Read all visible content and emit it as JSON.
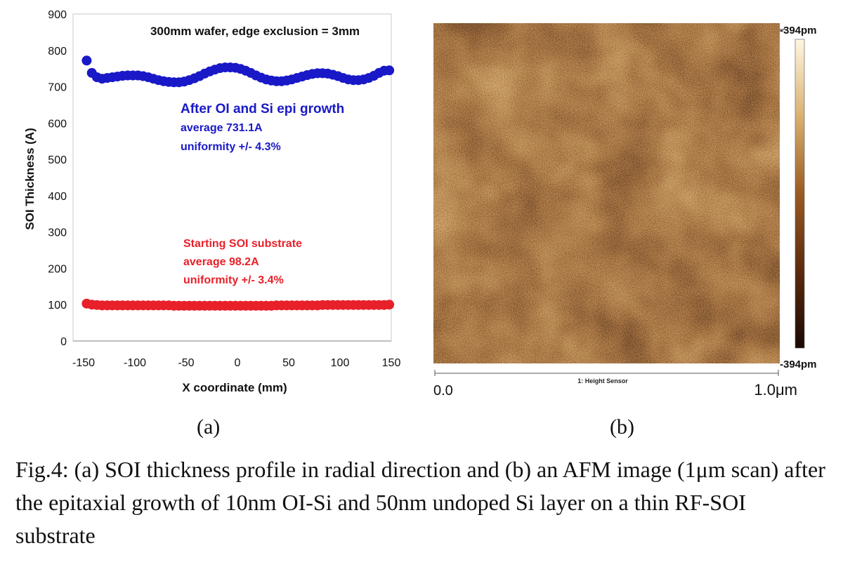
{
  "figure": {
    "panel_a_label": "(a)",
    "panel_b_label": "(b)",
    "caption": "Fig.4: (a) SOI thickness profile in radial direction and (b) an AFM image (1μm scan) after the epitaxial growth of 10nm OI-Si and 50nm undoped Si layer on a thin RF-SOI substrate"
  },
  "chart_data": {
    "type": "scatter",
    "title": "300mm wafer, edge exclusion = 3mm",
    "xlabel": "X coordinate (mm)",
    "ylabel": "SOI Thickness (A)",
    "xlim": [
      -150,
      150
    ],
    "ylim": [
      0,
      900
    ],
    "xticks": [
      -150,
      -100,
      -50,
      0,
      50,
      100,
      150
    ],
    "yticks": [
      0,
      100,
      200,
      300,
      400,
      500,
      600,
      700,
      800,
      900
    ],
    "grid": "none",
    "series": [
      {
        "color": "#1919c8",
        "x": [
          -147,
          -142,
          -137,
          -132,
          -127,
          -122,
          -117,
          -112,
          -107,
          -102,
          -97,
          -92,
          -87,
          -82,
          -77,
          -72,
          -67,
          -62,
          -57,
          -52,
          -47,
          -42,
          -37,
          -32,
          -27,
          -22,
          -17,
          -12,
          -7,
          -2,
          3,
          8,
          13,
          18,
          23,
          28,
          33,
          38,
          43,
          48,
          53,
          58,
          63,
          68,
          73,
          78,
          83,
          88,
          93,
          98,
          103,
          108,
          113,
          118,
          123,
          128,
          133,
          138,
          143,
          148
        ],
        "values": [
          772,
          738,
          726,
          722,
          724,
          726,
          728,
          730,
          731,
          731,
          731,
          729,
          726,
          722,
          718,
          715,
          713,
          712,
          712,
          714,
          718,
          723,
          729,
          736,
          742,
          747,
          751,
          753,
          753,
          752,
          749,
          744,
          738,
          731,
          725,
          720,
          717,
          715,
          715,
          717,
          720,
          724,
          728,
          732,
          735,
          737,
          737,
          736,
          733,
          729,
          724,
          720,
          718,
          718,
          720,
          724,
          730,
          738,
          744,
          745
        ],
        "annotation": [
          "After OI and Si epi growth",
          "average 731.1A",
          "uniformity +/- 4.3%"
        ]
      },
      {
        "color": "#e8202a",
        "x": [
          -147,
          -142,
          -137,
          -132,
          -127,
          -122,
          -117,
          -112,
          -107,
          -102,
          -97,
          -92,
          -87,
          -82,
          -77,
          -72,
          -67,
          -62,
          -57,
          -52,
          -47,
          -42,
          -37,
          -32,
          -27,
          -22,
          -17,
          -12,
          -7,
          -2,
          3,
          8,
          13,
          18,
          23,
          28,
          33,
          38,
          43,
          48,
          53,
          58,
          63,
          68,
          73,
          78,
          83,
          88,
          93,
          98,
          103,
          108,
          113,
          118,
          123,
          128,
          133,
          138,
          143,
          148
        ],
        "values": [
          103,
          100,
          99,
          98,
          98,
          98,
          98,
          98,
          98,
          98,
          98,
          98,
          98,
          98,
          98,
          98,
          98,
          97,
          97,
          97,
          97,
          97,
          97,
          97,
          97,
          97,
          97,
          97,
          97,
          97,
          97,
          97,
          97,
          97,
          97,
          97,
          97,
          98,
          98,
          98,
          98,
          98,
          98,
          98,
          98,
          98,
          99,
          99,
          99,
          99,
          99,
          99,
          99,
          99,
          99,
          99,
          99,
          99,
          99,
          100
        ],
        "annotation": [
          "Starting SOI substrate",
          "average 98.2A",
          "uniformity +/- 3.4%"
        ]
      }
    ]
  },
  "afm": {
    "colorbar_top_label": "-394pm",
    "colorbar_bottom_label": "-394pm",
    "channel_label": "1: Height Sensor",
    "scale_start": "0.0",
    "scale_end": "1.0μm",
    "colors": [
      "#1a0904",
      "#5c2a0d",
      "#9a5a22",
      "#d9b070",
      "#fff6e0"
    ]
  }
}
